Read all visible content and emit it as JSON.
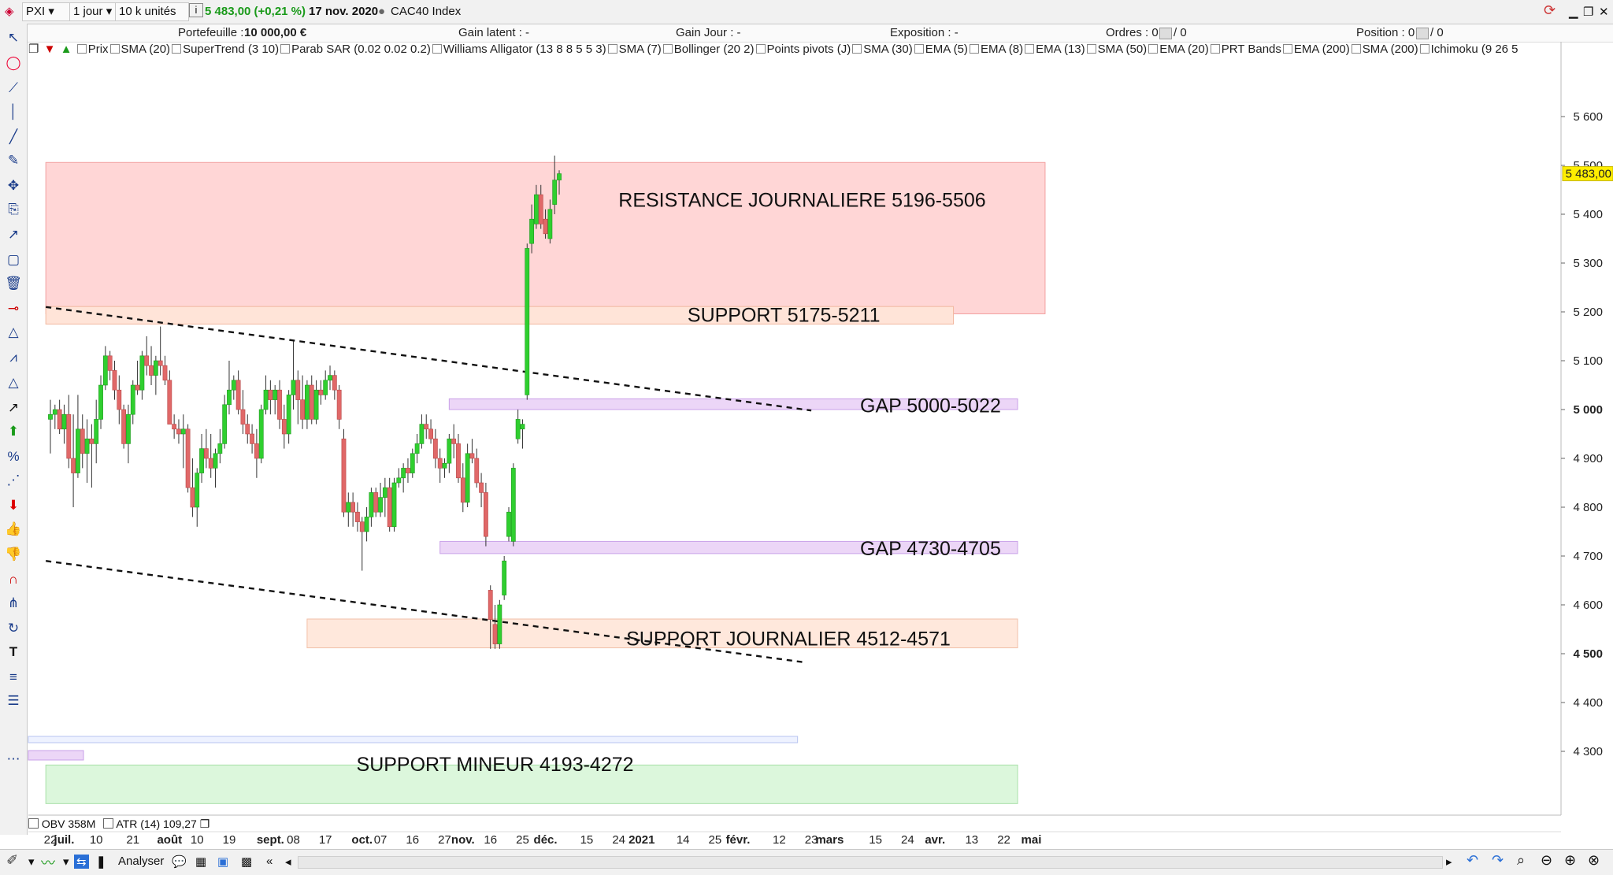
{
  "header": {
    "symbol": "PXI",
    "timeframe": "1 jour",
    "units": "10 k unités",
    "info_icon": "i",
    "price_change": "5 483,00 (+0,21 %)",
    "date": "17 nov. 2020",
    "instrument": "CAC40 Index",
    "accent_color": "#1a9a1a"
  },
  "account": {
    "portefeuille_label": "Portefeuille :",
    "portefeuille_value": "10 000,00 €",
    "gain_latent": "Gain latent : -",
    "gain_jour": "Gain Jour : -",
    "exposition": "Exposition : -",
    "ordres_label": "Ordres : 0",
    "ordres_sep": "/ 0",
    "position_label": "Position : 0",
    "position_sep": "/ 0"
  },
  "indicators": [
    "Prix",
    "SMA (20)",
    "SuperTrend (3 10)",
    "Parab SAR (0.02 0.02 0.2)",
    "Williams Alligator (13 8 8 5 5 3)",
    "SMA (7)",
    "Bollinger (20 2)",
    "Points pivots (J)",
    "SMA (30)",
    "EMA (5)",
    "EMA (8)",
    "EMA (13)",
    "SMA (50)",
    "EMA (20)",
    "PRT Bands",
    "EMA (200)",
    "SMA (200)",
    "Ichimoku (9 26 5"
  ],
  "bottom_legend": {
    "obv": "OBV 358M",
    "atr": "ATR (14) 109,27"
  },
  "statusbar": {
    "analyser": "Analyser"
  },
  "chart_data": {
    "type": "candlestick",
    "ylim": [
      4250,
      5650
    ],
    "yticks": [
      {
        "label": "5 600",
        "value": 5600,
        "bold": false
      },
      {
        "label": "5 500",
        "value": 5500,
        "bold": false
      },
      {
        "label": "5 400",
        "value": 5400,
        "bold": false
      },
      {
        "label": "5 300",
        "value": 5300,
        "bold": false
      },
      {
        "label": "5 200",
        "value": 5200,
        "bold": false
      },
      {
        "label": "5 100",
        "value": 5100,
        "bold": false
      },
      {
        "label": "5 000",
        "value": 5000,
        "bold": true
      },
      {
        "label": "4 900",
        "value": 4900,
        "bold": false
      },
      {
        "label": "4 800",
        "value": 4800,
        "bold": false
      },
      {
        "label": "4 700",
        "value": 4700,
        "bold": false
      },
      {
        "label": "4 600",
        "value": 4600,
        "bold": false
      },
      {
        "label": "4 500",
        "value": 4500,
        "bold": true
      },
      {
        "label": "4 400",
        "value": 4400,
        "bold": false
      },
      {
        "label": "4 300",
        "value": 4300,
        "bold": false
      }
    ],
    "current_price": {
      "label": "5 483,00",
      "value": 5483
    },
    "xticks": [
      {
        "label": "22",
        "bar": 0,
        "bold": false
      },
      {
        "label": "juil.",
        "bar": 3,
        "bold": true
      },
      {
        "label": "10",
        "bar": 10,
        "bold": false
      },
      {
        "label": "21",
        "bar": 18,
        "bold": false
      },
      {
        "label": "août",
        "bar": 26,
        "bold": true
      },
      {
        "label": "10",
        "bar": 32,
        "bold": false
      },
      {
        "label": "19",
        "bar": 39,
        "bold": false
      },
      {
        "label": "sept.",
        "bar": 48,
        "bold": true
      },
      {
        "label": "08",
        "bar": 53,
        "bold": false
      },
      {
        "label": "17",
        "bar": 60,
        "bold": false
      },
      {
        "label": "oct.",
        "bar": 68,
        "bold": true
      },
      {
        "label": "07",
        "bar": 72,
        "bold": false
      },
      {
        "label": "16",
        "bar": 79,
        "bold": false
      },
      {
        "label": "27",
        "bar": 86,
        "bold": false
      },
      {
        "label": "nov.",
        "bar": 90,
        "bold": true
      },
      {
        "label": "16",
        "bar": 96,
        "bold": false
      },
      {
        "label": "25",
        "bar": 103,
        "bold": false
      },
      {
        "label": "déc.",
        "bar": 108,
        "bold": true
      },
      {
        "label": "15",
        "bar": 117,
        "bold": false
      },
      {
        "label": "24",
        "bar": 124,
        "bold": false
      },
      {
        "label": "2021",
        "bar": 129,
        "bold": true
      },
      {
        "label": "14",
        "bar": 138,
        "bold": false
      },
      {
        "label": "25",
        "bar": 145,
        "bold": false
      },
      {
        "label": "févr.",
        "bar": 150,
        "bold": true
      },
      {
        "label": "12",
        "bar": 159,
        "bold": false
      },
      {
        "label": "23",
        "bar": 166,
        "bold": false
      },
      {
        "label": "mars",
        "bar": 170,
        "bold": true
      },
      {
        "label": "15",
        "bar": 180,
        "bold": false
      },
      {
        "label": "24",
        "bar": 187,
        "bold": false
      },
      {
        "label": "avr.",
        "bar": 193,
        "bold": true
      },
      {
        "label": "13",
        "bar": 201,
        "bold": false
      },
      {
        "label": "22",
        "bar": 208,
        "bold": false
      },
      {
        "label": "mai",
        "bar": 214,
        "bold": true
      }
    ],
    "zones": [
      {
        "label": "RESISTANCE  JOURNALIERE 5196-5506",
        "low": 5196,
        "high": 5506,
        "from_bar": -1,
        "to_bar": 217,
        "fill": "#ffd6d6",
        "stroke": "#f2a0a0",
        "label_bar": 164,
        "label_value": 5415
      },
      {
        "label": "SUPPORT  5175-5211",
        "low": 5175,
        "high": 5211,
        "from_bar": -1,
        "to_bar": 197,
        "fill": "#ffe4d8",
        "stroke": "#f2b8a0",
        "label_bar": 160,
        "label_value": 5180
      },
      {
        "label": "GAP 5000-5022",
        "low": 5000,
        "high": 5022,
        "from_bar": 87,
        "to_bar": 211,
        "fill": "#ecd6f7",
        "stroke": "#c9a0e8",
        "label_bar": 192,
        "label_value": 4994
      },
      {
        "label": "GAP 4730-4705",
        "low": 4705,
        "high": 4730,
        "from_bar": 85,
        "to_bar": 211,
        "fill": "#ecd6f7",
        "stroke": "#c9a0e8",
        "label_bar": 192,
        "label_value": 4702
      },
      {
        "label": "SUPPORT JOURNALIER 4512-4571",
        "low": 4512,
        "high": 4571,
        "from_bar": 56,
        "to_bar": 211,
        "fill": "#ffe8dc",
        "stroke": "#f2c0a8",
        "label_bar": 161,
        "label_value": 4517
      },
      {
        "label": "SUPPORT MINEUR 4193-4272",
        "low": 4193,
        "high": 4272,
        "from_bar": -1,
        "to_bar": 211,
        "fill": "#dcf7dc",
        "stroke": "#a8e0a8",
        "label_bar": 97,
        "label_value": 4260
      }
    ],
    "trendlines": [
      {
        "from": [
          -1,
          5210
        ],
        "to": [
          166,
          4998
        ]
      },
      {
        "from": [
          -1,
          4690
        ],
        "to": [
          164,
          4483
        ]
      }
    ],
    "candles": [
      {
        "o": 4980,
        "h": 5020,
        "l": 4910,
        "c": 4990
      },
      {
        "o": 4990,
        "h": 5010,
        "l": 4960,
        "c": 5000
      },
      {
        "o": 5000,
        "h": 5020,
        "l": 4950,
        "c": 4960
      },
      {
        "o": 4960,
        "h": 5010,
        "l": 4930,
        "c": 4990
      },
      {
        "o": 4990,
        "h": 5030,
        "l": 4880,
        "c": 4900
      },
      {
        "o": 4900,
        "h": 4990,
        "l": 4800,
        "c": 4870
      },
      {
        "o": 4870,
        "h": 5030,
        "l": 4860,
        "c": 4960
      },
      {
        "o": 4960,
        "h": 4990,
        "l": 4880,
        "c": 4910
      },
      {
        "o": 4910,
        "h": 4980,
        "l": 4850,
        "c": 4940
      },
      {
        "o": 4940,
        "h": 4970,
        "l": 4840,
        "c": 4930
      },
      {
        "o": 4930,
        "h": 5020,
        "l": 4890,
        "c": 4980
      },
      {
        "o": 4980,
        "h": 5070,
        "l": 4960,
        "c": 5050
      },
      {
        "o": 5050,
        "h": 5130,
        "l": 5040,
        "c": 5110
      },
      {
        "o": 5110,
        "h": 5120,
        "l": 5060,
        "c": 5080
      },
      {
        "o": 5080,
        "h": 5100,
        "l": 5020,
        "c": 5040
      },
      {
        "o": 5040,
        "h": 5070,
        "l": 4970,
        "c": 5000
      },
      {
        "o": 5000,
        "h": 5010,
        "l": 4920,
        "c": 4930
      },
      {
        "o": 4930,
        "h": 5010,
        "l": 4890,
        "c": 4990
      },
      {
        "o": 4990,
        "h": 5060,
        "l": 4970,
        "c": 5050
      },
      {
        "o": 5050,
        "h": 5100,
        "l": 5030,
        "c": 5040
      },
      {
        "o": 5040,
        "h": 5120,
        "l": 5020,
        "c": 5110
      },
      {
        "o": 5110,
        "h": 5150,
        "l": 5070,
        "c": 5090
      },
      {
        "o": 5090,
        "h": 5130,
        "l": 5050,
        "c": 5070
      },
      {
        "o": 5070,
        "h": 5110,
        "l": 5030,
        "c": 5100
      },
      {
        "o": 5100,
        "h": 5170,
        "l": 5070,
        "c": 5090
      },
      {
        "o": 5090,
        "h": 5110,
        "l": 5050,
        "c": 5060
      },
      {
        "o": 5060,
        "h": 5080,
        "l": 4980,
        "c": 4970
      },
      {
        "o": 4970,
        "h": 4990,
        "l": 4940,
        "c": 4960
      },
      {
        "o": 4960,
        "h": 4980,
        "l": 4930,
        "c": 4950
      },
      {
        "o": 4950,
        "h": 4990,
        "l": 4880,
        "c": 4960
      },
      {
        "o": 4960,
        "h": 4970,
        "l": 4830,
        "c": 4840
      },
      {
        "o": 4840,
        "h": 4900,
        "l": 4780,
        "c": 4800
      },
      {
        "o": 4800,
        "h": 4880,
        "l": 4760,
        "c": 4870
      },
      {
        "o": 4870,
        "h": 4950,
        "l": 4850,
        "c": 4920
      },
      {
        "o": 4920,
        "h": 4960,
        "l": 4880,
        "c": 4900
      },
      {
        "o": 4900,
        "h": 4950,
        "l": 4860,
        "c": 4880
      },
      {
        "o": 4880,
        "h": 4920,
        "l": 4840,
        "c": 4910
      },
      {
        "o": 4910,
        "h": 4960,
        "l": 4890,
        "c": 4930
      },
      {
        "o": 4930,
        "h": 5030,
        "l": 4920,
        "c": 5010
      },
      {
        "o": 5010,
        "h": 5100,
        "l": 4990,
        "c": 5040
      },
      {
        "o": 5040,
        "h": 5070,
        "l": 5020,
        "c": 5060
      },
      {
        "o": 5060,
        "h": 5080,
        "l": 4990,
        "c": 5000
      },
      {
        "o": 5000,
        "h": 5040,
        "l": 4950,
        "c": 4970
      },
      {
        "o": 4970,
        "h": 4990,
        "l": 4930,
        "c": 4950
      },
      {
        "o": 4950,
        "h": 4970,
        "l": 4910,
        "c": 4930
      },
      {
        "o": 4930,
        "h": 4960,
        "l": 4860,
        "c": 4900
      },
      {
        "o": 4900,
        "h": 5010,
        "l": 4890,
        "c": 5000
      },
      {
        "o": 5000,
        "h": 5070,
        "l": 4990,
        "c": 5040
      },
      {
        "o": 5040,
        "h": 5060,
        "l": 4990,
        "c": 5020
      },
      {
        "o": 5020,
        "h": 5050,
        "l": 4990,
        "c": 5040
      },
      {
        "o": 5040,
        "h": 5060,
        "l": 4960,
        "c": 4980
      },
      {
        "o": 4980,
        "h": 5010,
        "l": 4920,
        "c": 4950
      },
      {
        "o": 4950,
        "h": 5040,
        "l": 4930,
        "c": 5030
      },
      {
        "o": 5030,
        "h": 5140,
        "l": 5000,
        "c": 5060
      },
      {
        "o": 5060,
        "h": 5080,
        "l": 4970,
        "c": 5020
      },
      {
        "o": 5020,
        "h": 5070,
        "l": 4960,
        "c": 4980
      },
      {
        "o": 4980,
        "h": 5060,
        "l": 4960,
        "c": 5050
      },
      {
        "o": 5050,
        "h": 5070,
        "l": 4970,
        "c": 4980
      },
      {
        "o": 4980,
        "h": 5060,
        "l": 4970,
        "c": 5040
      },
      {
        "o": 5040,
        "h": 5060,
        "l": 5010,
        "c": 5030
      },
      {
        "o": 5030,
        "h": 5080,
        "l": 5020,
        "c": 5060
      },
      {
        "o": 5060,
        "h": 5090,
        "l": 5040,
        "c": 5070
      },
      {
        "o": 5070,
        "h": 5080,
        "l": 5020,
        "c": 5040
      },
      {
        "o": 5040,
        "h": 5050,
        "l": 4960,
        "c": 4980
      },
      {
        "o": 4940,
        "h": 4960,
        "l": 4780,
        "c": 4790
      },
      {
        "o": 4790,
        "h": 4830,
        "l": 4760,
        "c": 4810
      },
      {
        "o": 4810,
        "h": 4830,
        "l": 4760,
        "c": 4790
      },
      {
        "o": 4790,
        "h": 4810,
        "l": 4750,
        "c": 4770
      },
      {
        "o": 4770,
        "h": 4780,
        "l": 4670,
        "c": 4750
      },
      {
        "o": 4750,
        "h": 4800,
        "l": 4730,
        "c": 4780
      },
      {
        "o": 4780,
        "h": 4840,
        "l": 4760,
        "c": 4830
      },
      {
        "o": 4830,
        "h": 4840,
        "l": 4780,
        "c": 4790
      },
      {
        "o": 4790,
        "h": 4850,
        "l": 4780,
        "c": 4820
      },
      {
        "o": 4820,
        "h": 4860,
        "l": 4780,
        "c": 4840
      },
      {
        "o": 4840,
        "h": 4860,
        "l": 4750,
        "c": 4760
      },
      {
        "o": 4760,
        "h": 4860,
        "l": 4750,
        "c": 4850
      },
      {
        "o": 4850,
        "h": 4880,
        "l": 4840,
        "c": 4860
      },
      {
        "o": 4860,
        "h": 4890,
        "l": 4830,
        "c": 4880
      },
      {
        "o": 4880,
        "h": 4900,
        "l": 4850,
        "c": 4870
      },
      {
        "o": 4870,
        "h": 4920,
        "l": 4860,
        "c": 4910
      },
      {
        "o": 4910,
        "h": 4950,
        "l": 4890,
        "c": 4930
      },
      {
        "o": 4930,
        "h": 4990,
        "l": 4920,
        "c": 4970
      },
      {
        "o": 4970,
        "h": 4990,
        "l": 4940,
        "c": 4960
      },
      {
        "o": 4960,
        "h": 4980,
        "l": 4930,
        "c": 4940
      },
      {
        "o": 4940,
        "h": 4960,
        "l": 4880,
        "c": 4900
      },
      {
        "o": 4900,
        "h": 4920,
        "l": 4850,
        "c": 4880
      },
      {
        "o": 4880,
        "h": 4900,
        "l": 4860,
        "c": 4890
      },
      {
        "o": 4890,
        "h": 4950,
        "l": 4870,
        "c": 4940
      },
      {
        "o": 4940,
        "h": 4970,
        "l": 4900,
        "c": 4930
      },
      {
        "o": 4930,
        "h": 4950,
        "l": 4850,
        "c": 4860
      },
      {
        "o": 4860,
        "h": 4890,
        "l": 4790,
        "c": 4810
      },
      {
        "o": 4810,
        "h": 4930,
        "l": 4800,
        "c": 4910
      },
      {
        "o": 4910,
        "h": 4940,
        "l": 4890,
        "c": 4900
      },
      {
        "o": 4900,
        "h": 4920,
        "l": 4840,
        "c": 4850
      },
      {
        "o": 4850,
        "h": 4870,
        "l": 4800,
        "c": 4830
      },
      {
        "o": 4830,
        "h": 4850,
        "l": 4720,
        "c": 4740
      },
      {
        "o": 4630,
        "h": 4640,
        "l": 4510,
        "c": 4570
      },
      {
        "o": 4560,
        "h": 4600,
        "l": 4510,
        "c": 4520
      },
      {
        "o": 4520,
        "h": 4610,
        "l": 4510,
        "c": 4600
      },
      {
        "o": 4620,
        "h": 4700,
        "l": 4610,
        "c": 4690
      },
      {
        "o": 4740,
        "h": 4800,
        "l": 4730,
        "c": 4790
      },
      {
        "o": 4730,
        "h": 4890,
        "l": 4720,
        "c": 4880
      },
      {
        "o": 4940,
        "h": 5000,
        "l": 4930,
        "c": 4980
      },
      {
        "o": 4960,
        "h": 4980,
        "l": 4920,
        "c": 4970
      },
      {
        "o": 5030,
        "h": 5340,
        "l": 5020,
        "c": 5330
      },
      {
        "o": 5340,
        "h": 5420,
        "l": 5320,
        "c": 5390
      },
      {
        "o": 5380,
        "h": 5460,
        "l": 5370,
        "c": 5440
      },
      {
        "o": 5440,
        "h": 5460,
        "l": 5370,
        "c": 5380
      },
      {
        "o": 5390,
        "h": 5410,
        "l": 5350,
        "c": 5360
      },
      {
        "o": 5350,
        "h": 5430,
        "l": 5340,
        "c": 5410
      },
      {
        "o": 5420,
        "h": 5520,
        "l": 5400,
        "c": 5470
      },
      {
        "o": 5470,
        "h": 5490,
        "l": 5440,
        "c": 5483
      }
    ]
  }
}
